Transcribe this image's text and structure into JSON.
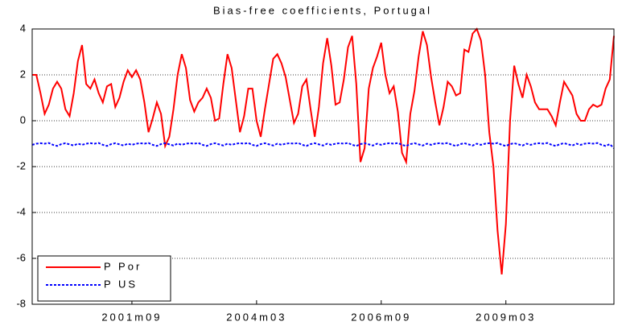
{
  "chart_data": {
    "type": "line",
    "title": "Bias-free coefficients, Portugal",
    "categories": [
      null,
      null,
      null,
      null,
      null,
      null,
      null,
      null,
      null,
      null,
      null,
      null,
      null,
      null,
      null,
      null,
      null,
      null,
      null,
      null,
      null,
      null,
      null,
      null,
      "2001m09",
      null,
      null,
      null,
      null,
      null,
      null,
      null,
      null,
      null,
      null,
      null,
      null,
      null,
      null,
      null,
      null,
      null,
      null,
      null,
      null,
      null,
      null,
      null,
      null,
      null,
      null,
      null,
      null,
      null,
      "2004m03",
      null,
      null,
      null,
      null,
      null,
      null,
      null,
      null,
      null,
      null,
      null,
      null,
      null,
      null,
      null,
      null,
      null,
      null,
      null,
      null,
      null,
      null,
      null,
      null,
      null,
      null,
      null,
      null,
      null,
      "2006m09",
      null,
      null,
      null,
      null,
      null,
      null,
      null,
      null,
      null,
      null,
      null,
      null,
      null,
      null,
      null,
      null,
      null,
      null,
      null,
      null,
      null,
      null,
      null,
      null,
      null,
      null,
      null,
      null,
      null,
      "2009m03",
      null,
      null,
      null,
      null,
      null,
      null,
      null,
      null,
      null,
      null,
      null,
      null,
      null,
      null,
      null,
      null,
      null,
      null,
      null,
      null,
      null,
      null,
      null,
      null,
      null,
      null
    ],
    "series": [
      {
        "name": "P Por",
        "color": "#ff0000",
        "linestyle": "solid",
        "values": [
          2.0,
          2.0,
          1.2,
          0.3,
          0.7,
          1.4,
          1.7,
          1.4,
          0.5,
          0.2,
          1.2,
          2.6,
          3.3,
          1.6,
          1.4,
          1.8,
          1.2,
          0.8,
          1.5,
          1.6,
          0.6,
          1.0,
          1.7,
          2.2,
          1.9,
          2.2,
          1.8,
          0.8,
          -0.5,
          0.1,
          0.8,
          0.3,
          -1.1,
          -0.7,
          0.5,
          2.0,
          2.9,
          2.3,
          0.9,
          0.4,
          0.8,
          1.0,
          1.4,
          1.0,
          0.0,
          0.1,
          1.6,
          2.9,
          2.3,
          0.9,
          -0.5,
          0.2,
          1.4,
          1.4,
          0.0,
          -0.7,
          0.5,
          1.6,
          2.7,
          2.9,
          2.5,
          1.9,
          0.9,
          -0.1,
          0.3,
          1.5,
          1.8,
          0.5,
          -0.7,
          0.6,
          2.5,
          3.6,
          2.4,
          0.7,
          0.8,
          1.8,
          3.2,
          3.7,
          1.6,
          -1.8,
          -1.2,
          1.4,
          2.3,
          2.8,
          3.4,
          2.0,
          1.2,
          1.5,
          0.4,
          -1.4,
          -1.8,
          0.3,
          1.3,
          2.8,
          3.9,
          3.3,
          1.9,
          0.8,
          -0.2,
          0.6,
          1.7,
          1.5,
          1.1,
          1.2,
          3.1,
          3.0,
          3.8,
          4.0,
          3.5,
          2.0,
          -0.5,
          -2.0,
          -4.8,
          -6.7,
          -4.5,
          0.0,
          2.4,
          1.6,
          1.0,
          2.0,
          1.5,
          0.8,
          0.5,
          0.5,
          0.5,
          0.2,
          -0.2,
          0.8,
          1.7,
          1.4,
          1.1,
          0.3,
          0.0,
          0.0,
          0.5,
          0.7,
          0.6,
          0.7,
          1.4,
          1.8,
          3.7
        ]
      },
      {
        "name": "P US",
        "color": "#0000ff",
        "linestyle": "dotted",
        "values": [
          -1.05,
          -1.0,
          -0.98,
          -1.0,
          -0.97,
          -1.05,
          -1.1,
          -1.02,
          -0.98,
          -1.03,
          -1.08,
          -1.0,
          -1.05,
          -1.0,
          -0.98,
          -1.0,
          -0.97,
          -1.05,
          -1.1,
          -1.02,
          -0.98,
          -1.03,
          -1.08,
          -1.0,
          -1.05,
          -1.0,
          -0.98,
          -1.0,
          -0.97,
          -1.05,
          -1.1,
          -1.02,
          -0.98,
          -1.03,
          -1.08,
          -1.0,
          -1.05,
          -1.0,
          -0.98,
          -1.0,
          -0.97,
          -1.05,
          -1.1,
          -1.02,
          -0.98,
          -1.03,
          -1.08,
          -1.0,
          -1.05,
          -1.0,
          -0.98,
          -1.0,
          -0.97,
          -1.05,
          -1.1,
          -1.02,
          -0.98,
          -1.03,
          -1.08,
          -1.0,
          -1.05,
          -1.0,
          -0.98,
          -1.0,
          -0.97,
          -1.05,
          -1.1,
          -1.02,
          -0.98,
          -1.03,
          -1.08,
          -1.0,
          -1.05,
          -1.0,
          -0.98,
          -1.0,
          -0.97,
          -1.05,
          -1.1,
          -1.02,
          -0.98,
          -1.03,
          -1.08,
          -1.0,
          -1.05,
          -1.0,
          -0.98,
          -1.0,
          -0.97,
          -1.05,
          -1.1,
          -1.02,
          -0.98,
          -1.03,
          -1.08,
          -1.0,
          -1.05,
          -1.0,
          -0.98,
          -1.0,
          -0.97,
          -1.05,
          -1.1,
          -1.02,
          -0.98,
          -1.03,
          -1.08,
          -1.0,
          -1.05,
          -1.0,
          -0.98,
          -1.0,
          -0.97,
          -1.05,
          -1.1,
          -1.02,
          -0.98,
          -1.03,
          -1.08,
          -1.0,
          -1.05,
          -1.0,
          -0.98,
          -1.0,
          -0.97,
          -1.05,
          -1.1,
          -1.02,
          -0.98,
          -1.03,
          -1.08,
          -1.0,
          -1.05,
          -1.0,
          -0.98,
          -1.0,
          -0.97,
          -1.05,
          -1.1,
          -1.02,
          -1.2
        ]
      }
    ],
    "ylim": [
      -8,
      4
    ],
    "yticks": [
      -8,
      -6,
      -4,
      -2,
      0,
      2,
      4
    ],
    "grid": true,
    "legend": "lower left"
  }
}
